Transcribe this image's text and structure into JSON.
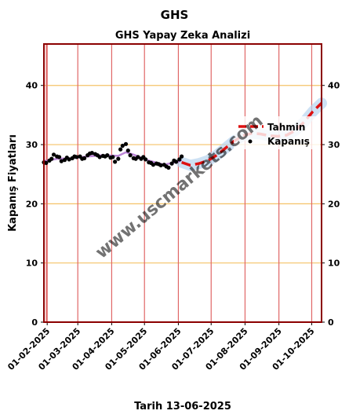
{
  "chart_data": {
    "type": "line",
    "suptitle": "GHS",
    "title": "GHS Yapay Zeka Analizi",
    "xlabel": "Tarih 13-06-2025",
    "ylabel": "Kapanış Fiyatları",
    "ylim": [
      0,
      47
    ],
    "yticks": [
      0,
      10,
      20,
      30,
      40
    ],
    "xlim": [
      "2025-01-29",
      "2025-10-10"
    ],
    "xticks": [
      "01-02-2025",
      "01-03-2025",
      "01-04-2025",
      "01-05-2025",
      "01-06-2025",
      "01-07-2025",
      "01-08-2025",
      "01-09-2025",
      "01-10-2025"
    ],
    "grid": "on",
    "legend_position": "top-right",
    "watermark": "www.uscmarkets.com",
    "colors": {
      "frame": "#8b0000",
      "vgrid": "#e06666",
      "hgrid": "#f5c267",
      "close": "#000000",
      "trend": "#b070d0",
      "forecast": "#dd1111",
      "forecast_band": "#b8d4f0"
    },
    "series": [
      {
        "name": "Kapanış",
        "style": "scatter",
        "x": [
          "2025-01-29",
          "2025-01-31",
          "2025-02-03",
          "2025-02-05",
          "2025-02-07",
          "2025-02-10",
          "2025-02-12",
          "2025-02-14",
          "2025-02-17",
          "2025-02-19",
          "2025-02-21",
          "2025-02-24",
          "2025-02-26",
          "2025-02-28",
          "2025-03-03",
          "2025-03-05",
          "2025-03-07",
          "2025-03-10",
          "2025-03-12",
          "2025-03-14",
          "2025-03-17",
          "2025-03-19",
          "2025-03-21",
          "2025-03-24",
          "2025-03-26",
          "2025-03-28",
          "2025-03-31",
          "2025-04-02",
          "2025-04-04",
          "2025-04-07",
          "2025-04-09",
          "2025-04-11",
          "2025-04-14",
          "2025-04-16",
          "2025-04-18",
          "2025-04-21",
          "2025-04-23",
          "2025-04-25",
          "2025-04-28",
          "2025-04-30",
          "2025-05-02",
          "2025-05-05",
          "2025-05-07",
          "2025-05-09",
          "2025-05-12",
          "2025-05-14",
          "2025-05-16",
          "2025-05-19",
          "2025-05-21",
          "2025-05-23",
          "2025-05-26",
          "2025-05-28",
          "2025-05-30",
          "2025-06-02",
          "2025-06-04"
        ],
        "values": [
          27.0,
          26.9,
          27.3,
          27.6,
          28.3,
          28.0,
          27.9,
          27.2,
          27.4,
          27.8,
          27.5,
          27.7,
          28.0,
          27.9,
          28.0,
          27.6,
          27.7,
          28.2,
          28.5,
          28.6,
          28.4,
          28.2,
          27.9,
          28.1,
          28.0,
          28.2,
          27.8,
          27.9,
          27.1,
          27.6,
          29.2,
          29.8,
          30.1,
          29.0,
          28.2,
          27.7,
          27.6,
          27.9,
          27.6,
          27.9,
          27.5,
          27.0,
          26.9,
          26.6,
          26.8,
          26.7,
          26.5,
          26.6,
          26.3,
          26.1,
          26.8,
          27.3,
          27.1,
          27.5,
          28.0
        ]
      },
      {
        "name": "Trend",
        "style": "line",
        "x": [
          "2025-01-29",
          "2025-02-10",
          "2025-02-24",
          "2025-03-10",
          "2025-03-24",
          "2025-04-07",
          "2025-04-14",
          "2025-04-21",
          "2025-05-05",
          "2025-05-19",
          "2025-06-02",
          "2025-06-04"
        ],
        "values": [
          27.2,
          27.6,
          27.7,
          28.0,
          28.2,
          28.1,
          28.7,
          28.3,
          27.3,
          26.6,
          27.2,
          27.4
        ]
      },
      {
        "name": "Tahmin",
        "style": "dashed",
        "x": [
          "2025-06-04",
          "2025-06-12",
          "2025-06-20",
          "2025-06-28",
          "2025-07-06",
          "2025-07-14",
          "2025-07-22",
          "2025-07-30",
          "2025-08-07",
          "2025-08-15",
          "2025-08-23",
          "2025-08-31",
          "2025-09-08",
          "2025-09-16",
          "2025-09-24",
          "2025-10-02",
          "2025-10-10"
        ],
        "values": [
          27.0,
          26.5,
          26.8,
          27.3,
          28.2,
          29.4,
          30.6,
          31.5,
          31.9,
          31.8,
          31.5,
          31.4,
          31.6,
          32.4,
          33.8,
          35.6,
          37.0
        ]
      }
    ]
  }
}
